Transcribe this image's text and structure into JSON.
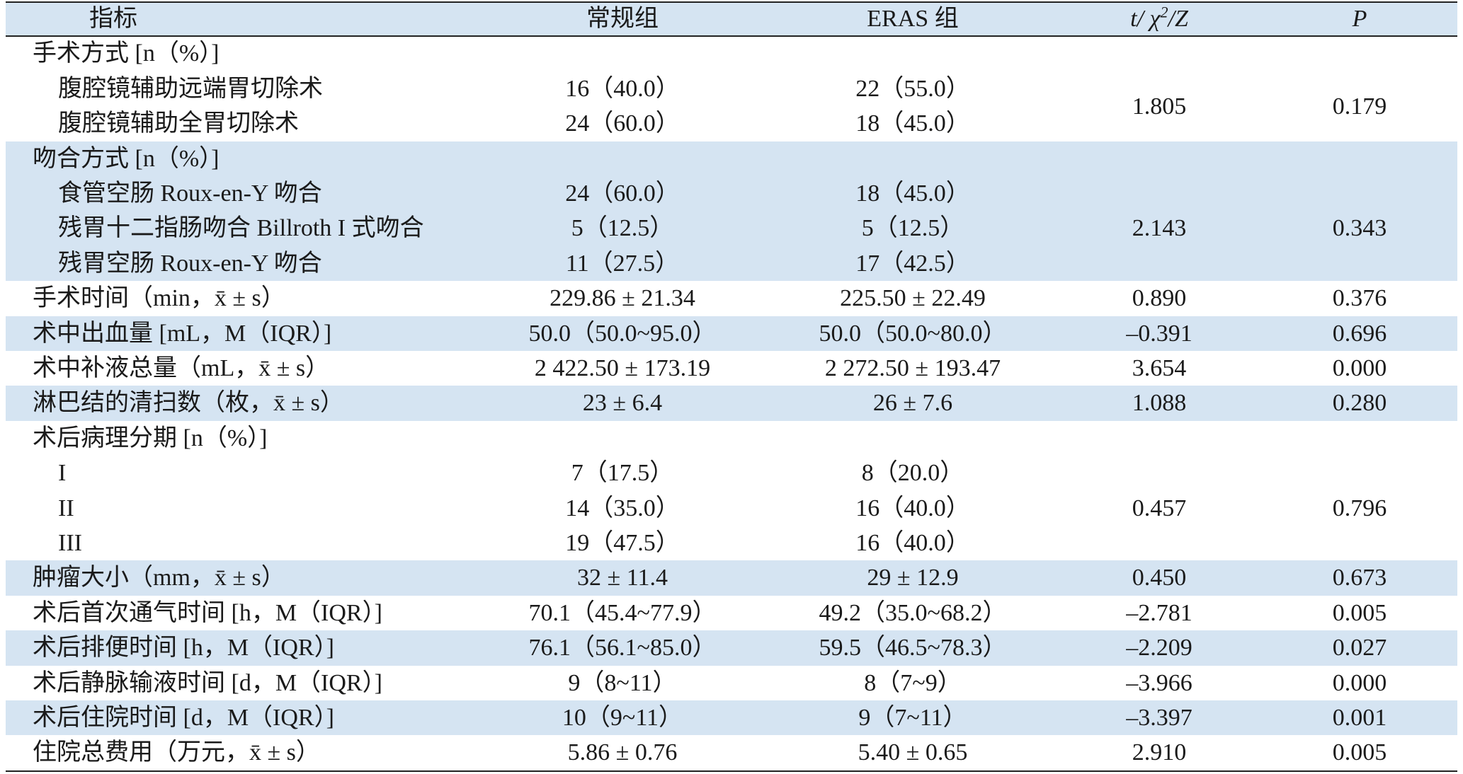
{
  "table": {
    "header": [
      "指标",
      "常规组",
      "ERAS 组",
      {
        "parts": [
          "t/ χ",
          "2",
          "/Z"
        ]
      },
      "P"
    ],
    "groups": [
      {
        "label": "手术方式 [n（%）]",
        "shade": false,
        "items": [
          {
            "label": "腹腔镜辅助远端胃切除术",
            "a": "16（40.0）",
            "b": "22（55.0）"
          },
          {
            "label": "腹腔镜辅助全胃切除术",
            "a": "24（60.0）",
            "b": "18（45.0）"
          }
        ],
        "stat": "1.805",
        "p": "0.179"
      },
      {
        "label": "吻合方式 [n（%）]",
        "shade": true,
        "items": [
          {
            "label": "食管空肠 Roux-en-Y 吻合",
            "a": "24（60.0）",
            "b": "18（45.0）"
          },
          {
            "label": "残胃十二指肠吻合 Billroth I 式吻合",
            "a": "5（12.5）",
            "b": "5（12.5）"
          },
          {
            "label": "残胃空肠 Roux-en-Y 吻合",
            "a": "11（27.5）",
            "b": "17（42.5）"
          }
        ],
        "stat": "2.143",
        "p": "0.343"
      },
      {
        "label": "手术时间（min，x̄ ± s）",
        "shade": false,
        "a": "229.86 ± 21.34",
        "b": "225.50 ± 22.49",
        "stat": "0.890",
        "p": "0.376"
      },
      {
        "label": "术中出血量 [mL，M（IQR）]",
        "shade": true,
        "a": "50.0（50.0~95.0）",
        "b": "50.0（50.0~80.0）",
        "stat": "–0.391",
        "p": "0.696"
      },
      {
        "label": "术中补液总量（mL，x̄ ± s）",
        "shade": false,
        "a": "2 422.50 ± 173.19",
        "b": "2 272.50 ± 193.47",
        "stat": "3.654",
        "p": "0.000"
      },
      {
        "label": "淋巴结的清扫数（枚，x̄ ± s）",
        "shade": true,
        "a": "23 ± 6.4",
        "b": "26 ± 7.6",
        "stat": "1.088",
        "p": "0.280"
      },
      {
        "label": "术后病理分期 [n（%）]",
        "shade": false,
        "items": [
          {
            "label": "I",
            "a": "7（17.5）",
            "b": "8（20.0）"
          },
          {
            "label": "II",
            "a": "14（35.0）",
            "b": "16（40.0）"
          },
          {
            "label": "III",
            "a": "19（47.5）",
            "b": "16（40.0）"
          }
        ],
        "stat": "0.457",
        "p": "0.796"
      },
      {
        "label": "肿瘤大小（mm，x̄ ± s）",
        "shade": true,
        "a": "32 ± 11.4",
        "b": "29 ± 12.9",
        "stat": "0.450",
        "p": "0.673"
      },
      {
        "label": "术后首次通气时间 [h，M（IQR）]",
        "shade": false,
        "a": "70.1（45.4~77.9）",
        "b": "49.2（35.0~68.2）",
        "stat": "–2.781",
        "p": "0.005"
      },
      {
        "label": "术后排便时间 [h，M（IQR）]",
        "shade": true,
        "a": "76.1（56.1~85.0）",
        "b": "59.5（46.5~78.3）",
        "stat": "–2.209",
        "p": "0.027"
      },
      {
        "label": "术后静脉输液时间 [d，M（IQR）]",
        "shade": false,
        "a": "9（8~11）",
        "b": "8（7~9）",
        "stat": "–3.966",
        "p": "0.000"
      },
      {
        "label": "术后住院时间 [d，M（IQR）]",
        "shade": true,
        "a": "10（9~11）",
        "b": "9（7~11）",
        "stat": "–3.397",
        "p": "0.001"
      },
      {
        "label": "住院总费用（万元，x̄ ± s）",
        "shade": false,
        "a": "5.86 ± 0.76",
        "b": "5.40 ± 0.65",
        "stat": "2.910",
        "p": "0.005"
      }
    ]
  }
}
